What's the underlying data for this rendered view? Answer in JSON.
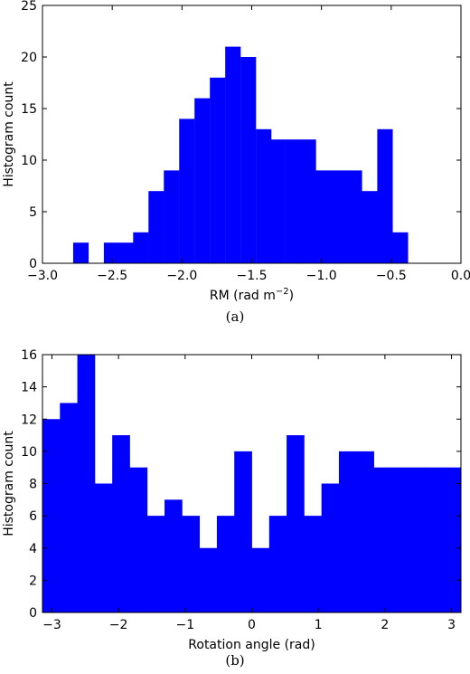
{
  "chart_data": [
    {
      "type": "bar",
      "subtype": "histogram",
      "title": "",
      "xlabel": "RM (rad m",
      "xlabel_exponent": "−2",
      "xlabel_close": ")",
      "ylabel": "Histogram count",
      "xlim": [
        -3.0,
        0.0
      ],
      "ylim": [
        0,
        25
      ],
      "bin_width": 0.1085,
      "bin_starts": [
        -2.78,
        -2.67,
        -2.56,
        -2.45,
        -2.35,
        -2.24,
        -2.13,
        -2.02,
        -1.91,
        -1.8,
        -1.69,
        -1.58,
        -1.47,
        -1.37,
        -1.26,
        -1.15,
        -1.04,
        -0.93,
        -0.82,
        -0.71,
        -0.6,
        -0.49
      ],
      "values": [
        2,
        0,
        2,
        2,
        3,
        7,
        9,
        14,
        16,
        18,
        21,
        20,
        13,
        12,
        12,
        12,
        9,
        9,
        9,
        7,
        13,
        3
      ],
      "xticks": [
        -3.0,
        -2.5,
        -2.0,
        -1.5,
        -1.0,
        -0.5,
        0.0
      ],
      "xtick_labels": [
        "−3.0",
        "−2.5",
        "−2.0",
        "−1.5",
        "−1.0",
        "−0.5",
        "0.0"
      ],
      "yticks": [
        0,
        5,
        10,
        15,
        20,
        25
      ],
      "ytick_labels": [
        "0",
        "5",
        "10",
        "15",
        "20",
        "25"
      ],
      "color": "#0000ff",
      "grid": false,
      "caption": "(a)"
    },
    {
      "type": "bar",
      "subtype": "histogram",
      "title": "",
      "xlabel": "Rotation angle (rad)",
      "ylabel": "Histogram count",
      "xlim": [
        -3.1416,
        3.1416
      ],
      "ylim": [
        0,
        16
      ],
      "bin_width": 0.2618,
      "bin_starts": [
        -3.1416,
        -2.8798,
        -2.618,
        -2.3562,
        -2.0944,
        -1.8326,
        -1.5708,
        -1.309,
        -1.0472,
        -0.7854,
        -0.5236,
        -0.2618,
        0.0,
        0.2618,
        0.5236,
        0.7854,
        1.0472,
        1.309,
        1.5708,
        1.8326,
        2.0944,
        2.3562,
        2.618,
        2.8798
      ],
      "values": [
        12,
        13,
        16,
        8,
        11,
        9,
        6,
        7,
        6,
        4,
        6,
        10,
        4,
        6,
        11,
        6,
        8,
        10,
        10,
        9,
        9,
        9,
        9,
        9
      ],
      "xticks": [
        -3,
        -2,
        -1,
        0,
        1,
        2,
        3
      ],
      "xtick_labels": [
        "−3",
        "−2",
        "−1",
        "0",
        "1",
        "2",
        "3"
      ],
      "yticks": [
        0,
        2,
        4,
        6,
        8,
        10,
        12,
        14,
        16
      ],
      "ytick_labels": [
        "0",
        "2",
        "4",
        "6",
        "8",
        "10",
        "12",
        "14",
        "16"
      ],
      "color": "#0000ff",
      "grid": false,
      "caption": "(b)"
    }
  ]
}
